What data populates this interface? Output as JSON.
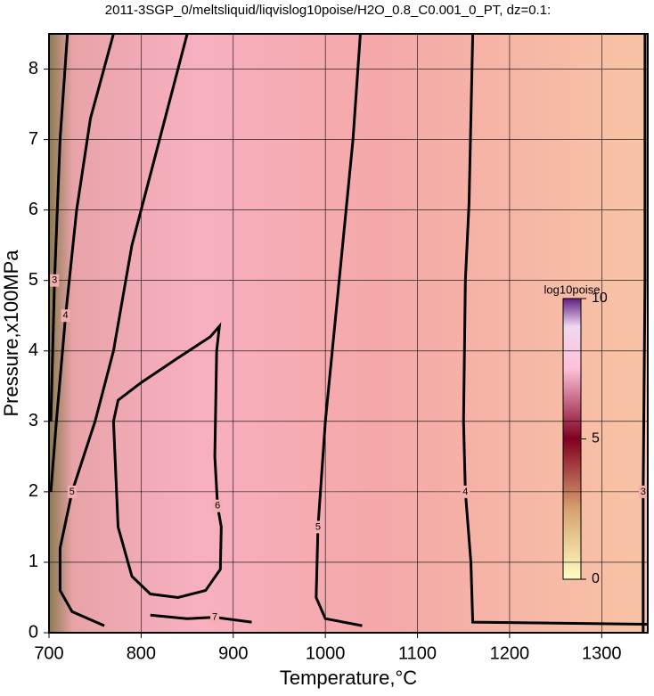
{
  "chart_data": {
    "type": "contour",
    "title": "2011-3SGP_0/meltsliquid/liqvislog10poise/H2O_0.8_C0.001_0_PT, dz=0.1:",
    "xlabel": "Temperature,°C",
    "ylabel": "Pressure,x100MPa",
    "xlim": [
      700,
      1350
    ],
    "ylim": [
      0,
      8.5
    ],
    "xticks": [
      700,
      800,
      900,
      1000,
      1100,
      1200,
      1300
    ],
    "yticks": [
      0,
      1,
      2,
      3,
      4,
      5,
      6,
      7,
      8
    ],
    "grid": true,
    "contours": [
      {
        "level": 6,
        "x": [
          770,
          775,
          800,
          840,
          875,
          885,
          882,
          880,
          883,
          887,
          886,
          870,
          840,
          810,
          790,
          775,
          770
        ],
        "y": [
          3.0,
          3.3,
          3.55,
          3.9,
          4.2,
          4.35,
          4.0,
          2.5,
          1.8,
          1.5,
          0.9,
          0.6,
          0.5,
          0.55,
          0.8,
          1.5,
          3.0
        ]
      },
      {
        "level": 5,
        "x": [
          850,
          820,
          790,
          770,
          750,
          725,
          712,
          712,
          725,
          760
        ],
        "y": [
          8.5,
          7,
          5.5,
          4,
          3,
          2,
          1.2,
          0.6,
          0.3,
          0.1
        ]
      },
      {
        "level": 4,
        "x": [
          770,
          745,
          730,
          718,
          708,
          702
        ],
        "y": [
          8.5,
          7.3,
          6,
          4.5,
          3,
          2
        ]
      },
      {
        "level": 3,
        "x": [
          720,
          712,
          706,
          702
        ],
        "y": [
          8.5,
          7,
          5,
          3
        ]
      },
      {
        "level": 5,
        "x": [
          1038,
          1030,
          1015,
          1000,
          992,
          990,
          1000,
          1040
        ],
        "y": [
          8.5,
          7,
          5,
          3,
          1.5,
          0.5,
          0.2,
          0.1
        ]
      },
      {
        "level": 4,
        "x": [
          1160,
          1156,
          1152,
          1150,
          1152,
          1158,
          1160,
          1350
        ],
        "y": [
          8.5,
          6.1,
          5,
          3,
          2,
          1,
          0.15,
          0.12
        ]
      },
      {
        "level": 3,
        "x": [
          1347,
          1347,
          1345,
          1345
        ],
        "y": [
          8.5,
          5,
          2,
          0
        ]
      },
      {
        "level": 7,
        "x": [
          810,
          850,
          880,
          920
        ],
        "y": [
          0.25,
          0.2,
          0.22,
          0.15
        ]
      }
    ],
    "colorbar": {
      "label": "log10poise",
      "lim": [
        0,
        10
      ],
      "ticks": [
        0,
        5,
        10
      ]
    }
  }
}
